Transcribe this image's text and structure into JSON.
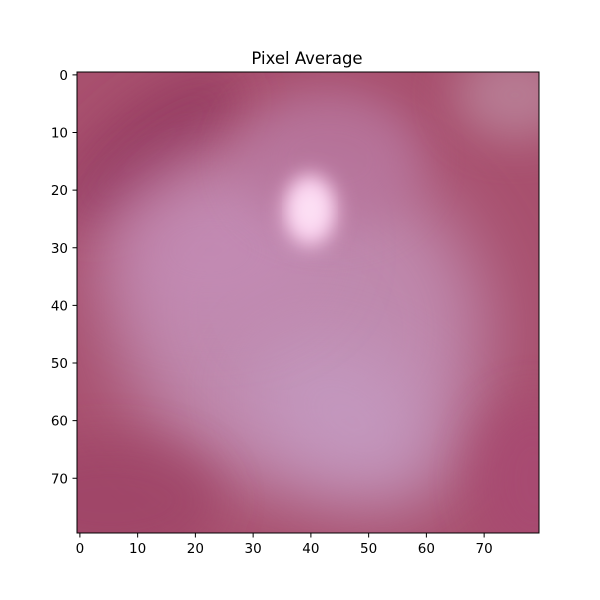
{
  "chart_data": {
    "type": "heatmap",
    "title": "Pixel Average",
    "xlabel": "",
    "ylabel": "",
    "image_width": 80,
    "image_height": 80,
    "xlim": [
      -0.5,
      79.5
    ],
    "ylim": [
      79.5,
      -0.5
    ],
    "y_axis_inverted": true,
    "x_ticks": [
      0,
      10,
      20,
      30,
      40,
      50,
      60,
      70
    ],
    "y_ticks": [
      0,
      10,
      20,
      30,
      40,
      50,
      60,
      70
    ],
    "x_tick_labels": [
      "0",
      "10",
      "20",
      "30",
      "40",
      "50",
      "60",
      "70"
    ],
    "y_tick_labels": [
      "0",
      "10",
      "20",
      "30",
      "40",
      "50",
      "60",
      "70"
    ],
    "grid": false,
    "colors": {
      "base_magenta": "#a8506e",
      "dark_magenta": "#973c62",
      "mauve_light": "#c393b8",
      "highlight_pink": "#fad0ee",
      "top_right_grey_pink": "#b98097"
    }
  }
}
